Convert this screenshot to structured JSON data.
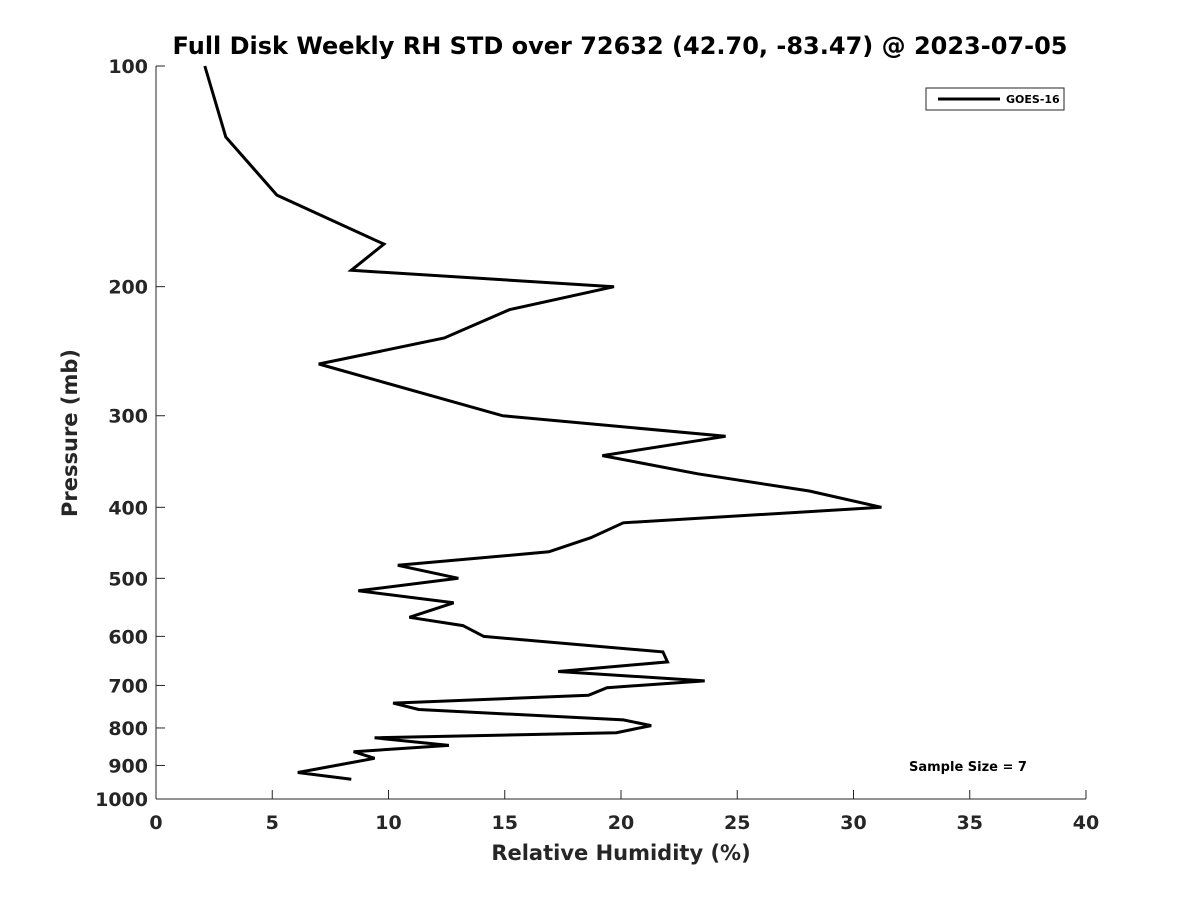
{
  "chart_data": {
    "type": "line",
    "title": "Full Disk Weekly RH STD over 72632 (42.70, -83.47) @ 2023-07-05",
    "xlabel": "Relative Humidity (%)",
    "ylabel": "Pressure (mb)",
    "xlim": [
      0,
      40
    ],
    "ylim": [
      100,
      1000
    ],
    "yscale": "log",
    "y_inverted": true,
    "x_ticks": [
      0,
      5,
      10,
      15,
      20,
      25,
      30,
      35,
      40
    ],
    "x_tick_labels": [
      "0",
      "5",
      "10",
      "15",
      "20",
      "25",
      "30",
      "35",
      "40"
    ],
    "y_ticks": [
      100,
      200,
      300,
      400,
      500,
      600,
      700,
      800,
      900,
      1000
    ],
    "y_tick_labels": [
      "100",
      "200",
      "300",
      "400",
      "500",
      "600",
      "700",
      "800",
      "900",
      "1000"
    ],
    "grid": false,
    "legend_position": "top-right",
    "series": [
      {
        "name": "GOES-16",
        "color": "#000000",
        "points": [
          [
            2.1,
            100
          ],
          [
            3.0,
            125
          ],
          [
            5.2,
            150
          ],
          [
            9.8,
            175
          ],
          [
            8.4,
            190
          ],
          [
            19.7,
            200
          ],
          [
            15.2,
            215
          ],
          [
            12.4,
            235
          ],
          [
            7.0,
            255
          ],
          [
            14.9,
            300
          ],
          [
            24.5,
            320
          ],
          [
            19.2,
            340
          ],
          [
            23.3,
            360
          ],
          [
            28.1,
            380
          ],
          [
            31.2,
            400
          ],
          [
            20.1,
            420
          ],
          [
            18.7,
            440
          ],
          [
            16.9,
            460
          ],
          [
            10.4,
            480
          ],
          [
            13.0,
            500
          ],
          [
            8.7,
            520
          ],
          [
            12.8,
            540
          ],
          [
            10.9,
            565
          ],
          [
            13.2,
            580
          ],
          [
            14.1,
            600
          ],
          [
            21.8,
            630
          ],
          [
            22.0,
            650
          ],
          [
            17.3,
            670
          ],
          [
            23.6,
            690
          ],
          [
            19.4,
            705
          ],
          [
            18.6,
            722
          ],
          [
            10.2,
            740
          ],
          [
            11.3,
            755
          ],
          [
            20.1,
            780
          ],
          [
            21.3,
            794
          ],
          [
            19.8,
            812
          ],
          [
            9.4,
            825
          ],
          [
            12.6,
            845
          ],
          [
            8.5,
            862
          ],
          [
            9.4,
            880
          ],
          [
            6.1,
            920
          ],
          [
            8.4,
            940
          ]
        ]
      }
    ],
    "annotations": [
      {
        "text": "Sample Size = 7"
      }
    ]
  }
}
